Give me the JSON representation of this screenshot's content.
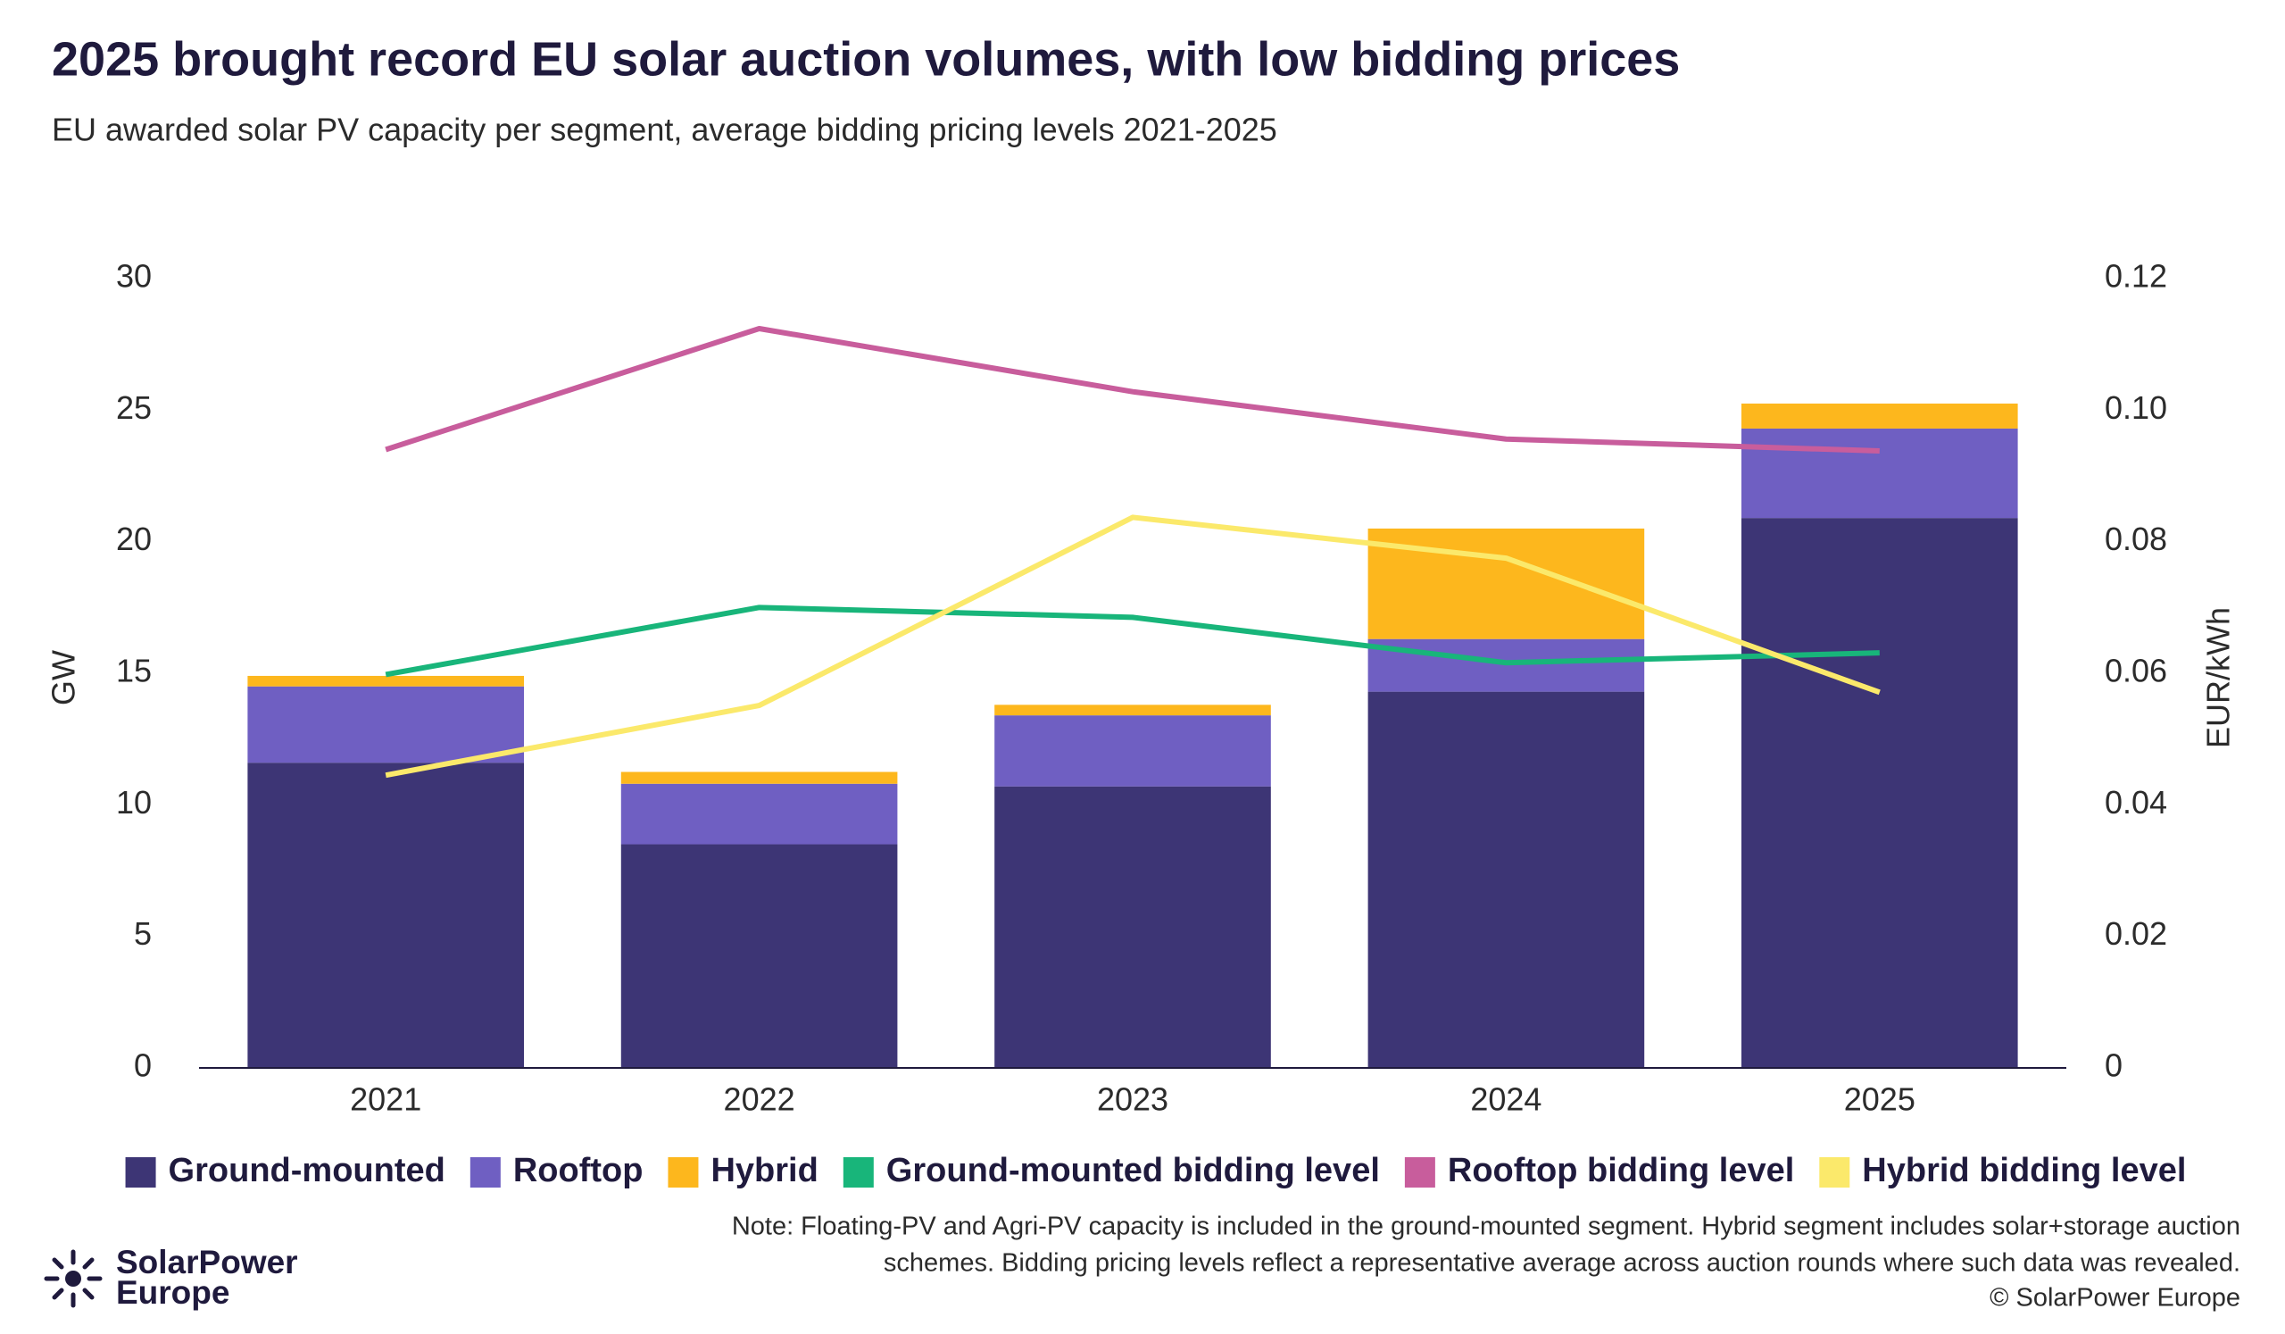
{
  "chart_data": {
    "type": "bar",
    "title": "2025 brought record EU solar auction volumes, with low bidding prices",
    "subtitle": "EU awarded solar PV capacity per segment, average bidding pricing levels 2021-2025",
    "categories": [
      "2021",
      "2022",
      "2023",
      "2024",
      "2025"
    ],
    "stacked": true,
    "y_label": "GW",
    "y2_label": "EUR/kWh",
    "ylim": [
      0,
      30
    ],
    "yticks": [
      0,
      5,
      10,
      15,
      20,
      25,
      30
    ],
    "y2lim": [
      0,
      0.12
    ],
    "y2ticks": [
      0,
      0.02,
      0.04,
      0.06,
      0.08,
      {
        "value": 0.1,
        "label": "0.10"
      },
      0.12
    ],
    "grid": false,
    "legend": "bottom",
    "series": [
      {
        "name": "Ground-mounted",
        "color": "#3d3575",
        "values": [
          11.6,
          8.5,
          10.7,
          14.3,
          20.9
        ]
      },
      {
        "name": "Rooftop",
        "color": "#6f5fc2",
        "values": [
          2.9,
          2.3,
          2.7,
          2.0,
          3.4
        ]
      },
      {
        "name": "Hybrid",
        "color": "#fdb71d",
        "values": [
          0.4,
          0.45,
          0.4,
          4.2,
          0.95
        ]
      },
      {
        "name": "Ground-mounted bidding level",
        "type": "line",
        "axis": "y2",
        "color": "#18b57a",
        "values": [
          0.0598,
          0.07,
          0.0685,
          0.0616,
          0.0631
        ]
      },
      {
        "name": "Rooftop bidding level",
        "type": "line",
        "axis": "y2",
        "color": "#c85d9c",
        "values": [
          0.094,
          0.1124,
          0.1028,
          0.0956,
          0.0938
        ]
      },
      {
        "name": "Hybrid bidding level",
        "type": "line",
        "axis": "y2",
        "color": "#fbe96b",
        "values": [
          0.0445,
          0.0551,
          0.0837,
          0.0775,
          0.0571
        ]
      }
    ],
    "note": [
      "Note: Floating-PV and Agri-PV capacity is included in the ground-mounted segment. Hybrid segment includes solar+storage auction",
      "schemes. Bidding pricing levels reflect a representative average across auction rounds where such data was revealed."
    ],
    "source": "© SolarPower Europe",
    "logo": [
      "SolarPower",
      "Europe"
    ]
  }
}
